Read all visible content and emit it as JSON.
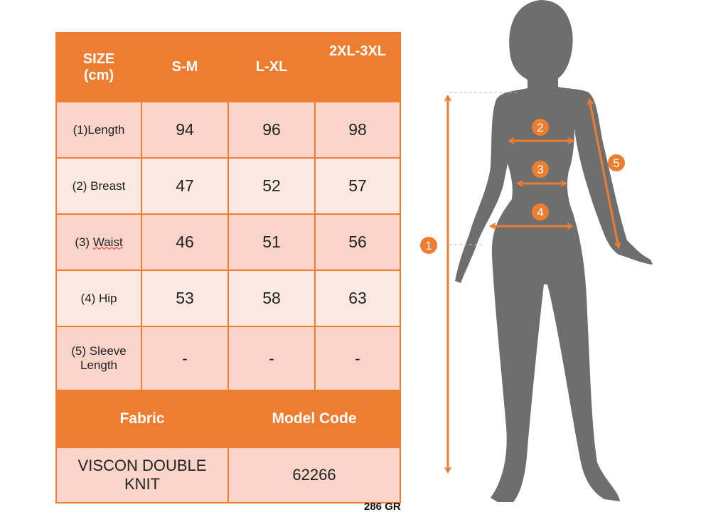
{
  "table": {
    "header": [
      "SIZE\n(cm)",
      "S-M",
      "L-XL",
      "2XL-3XL"
    ],
    "header_size_line1": "SIZE",
    "header_size_line2": "(cm)",
    "rows": [
      {
        "label": "(1)Length",
        "values": [
          "94",
          "96",
          "98"
        ]
      },
      {
        "label_prefix": "(2) Breast",
        "values": [
          "47",
          "52",
          "57"
        ]
      },
      {
        "label_prefix": "(3) ",
        "label_word": "Waist",
        "values": [
          "46",
          "51",
          "56"
        ]
      },
      {
        "label_prefix": "(4) Hip",
        "values": [
          "53",
          "58",
          "63"
        ]
      },
      {
        "label_line1": "(5) Sleeve",
        "label_line2": "Length",
        "values": [
          "-",
          "-",
          "-"
        ]
      }
    ],
    "fabric_header": "Fabric",
    "model_header": "Model Code",
    "fabric_line1": "VISCON DOUBLE",
    "fabric_line2": "KNIT",
    "model_code": "62266"
  },
  "weight": "286 GR",
  "diagram": {
    "markers": [
      "1",
      "2",
      "3",
      "4",
      "5"
    ]
  },
  "colors": {
    "accent": "#ED7D31",
    "row_dark": "#F8D5C8",
    "row_light": "#FBE8E1",
    "silhouette": "#6E6E6E"
  }
}
